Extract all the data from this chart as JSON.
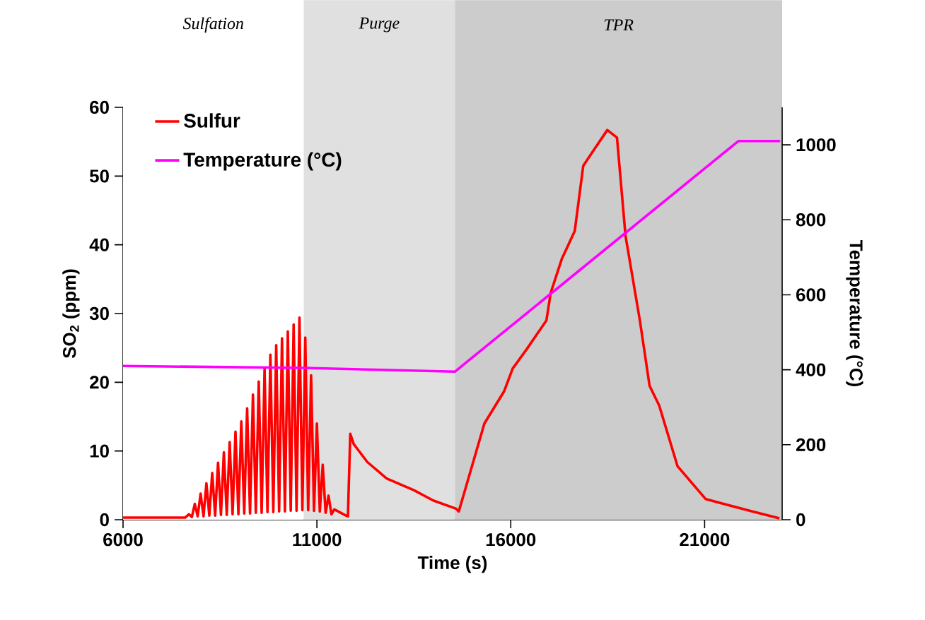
{
  "chart_data": {
    "type": "line",
    "xlabel": "Time (s)",
    "ylabel": "SO$_{2}$ (ppm)",
    "y2label": "Temperature (°C)",
    "xlim": [
      6000,
      23000
    ],
    "xticks": [
      6000,
      11000,
      16000,
      21000
    ],
    "ylim": [
      0,
      60
    ],
    "yticks": [
      0,
      10,
      20,
      30,
      40,
      50,
      60
    ],
    "y2lim": [
      0,
      1100
    ],
    "y2ticks": [
      0,
      200,
      400,
      600,
      800,
      1000
    ],
    "legend": "top left",
    "grid": false,
    "bands": [
      {
        "axis": "x",
        "from": 6000,
        "to": 10660,
        "label": "Sulfation",
        "color": "#ffffff"
      },
      {
        "axis": "x",
        "from": 10660,
        "to": 14560,
        "label": "Purge",
        "color": "#e0e0e0"
      },
      {
        "axis": "x",
        "from": 14560,
        "to": 23000,
        "label": "TPR",
        "color": "#cccccc"
      }
    ],
    "series": [
      {
        "name": "Sulfur",
        "color": "#ff0000",
        "x": [
          6000,
          7600,
          7700,
          7775,
          7850,
          7925,
          8000,
          8075,
          8150,
          8225,
          8300,
          8375,
          8450,
          8525,
          8600,
          8675,
          8750,
          8825,
          8900,
          8975,
          9050,
          9125,
          9200,
          9275,
          9350,
          9425,
          9500,
          9575,
          9650,
          9725,
          9800,
          9875,
          9950,
          10025,
          10100,
          10175,
          10250,
          10325,
          10400,
          10475,
          10550,
          10625,
          10700,
          10775,
          10850,
          10925,
          11000,
          11075,
          11150,
          11225,
          11300,
          11375,
          11450,
          11750,
          11800,
          11860,
          11950,
          12300,
          12800,
          13500,
          14000,
          14590,
          14660,
          15320,
          15830,
          16050,
          16410,
          16920,
          17030,
          17320,
          17650,
          17870,
          18120,
          18490,
          18740,
          18960,
          19330,
          19580,
          19830,
          20300,
          21030,
          22230,
          22930
        ],
        "values": [
          0.3,
          0.3,
          0.8,
          0.4,
          2.3,
          0.5,
          3.8,
          0.5,
          5.3,
          0.6,
          6.8,
          0.6,
          8.3,
          0.7,
          9.8,
          0.7,
          11.3,
          0.8,
          12.8,
          0.8,
          14.3,
          0.9,
          16.2,
          0.9,
          18.2,
          1.0,
          20.1,
          1.0,
          22.0,
          1.1,
          24.0,
          1.1,
          25.4,
          1.2,
          26.4,
          1.2,
          27.4,
          1.3,
          28.4,
          1.3,
          29.4,
          1.4,
          26.5,
          1.4,
          21.0,
          1.3,
          14.0,
          1.2,
          8.0,
          1.0,
          3.5,
          0.8,
          1.5,
          0.6,
          0.5,
          12.5,
          11.0,
          8.4,
          6.0,
          4.3,
          2.8,
          1.6,
          1.2,
          14,
          18.7,
          22,
          24.8,
          29,
          33,
          38,
          42,
          51.5,
          53.6,
          56.7,
          55.6,
          41.3,
          29,
          19.5,
          16.6,
          7.8,
          3,
          1.2,
          0.2
        ]
      },
      {
        "name": "Temperature (°C)",
        "color": "#ff00ff",
        "axis": "y2",
        "x": [
          6000,
          10660,
          14560,
          21870,
          22950
        ],
        "values": [
          410,
          405,
          395,
          1010,
          1010
        ]
      }
    ]
  }
}
